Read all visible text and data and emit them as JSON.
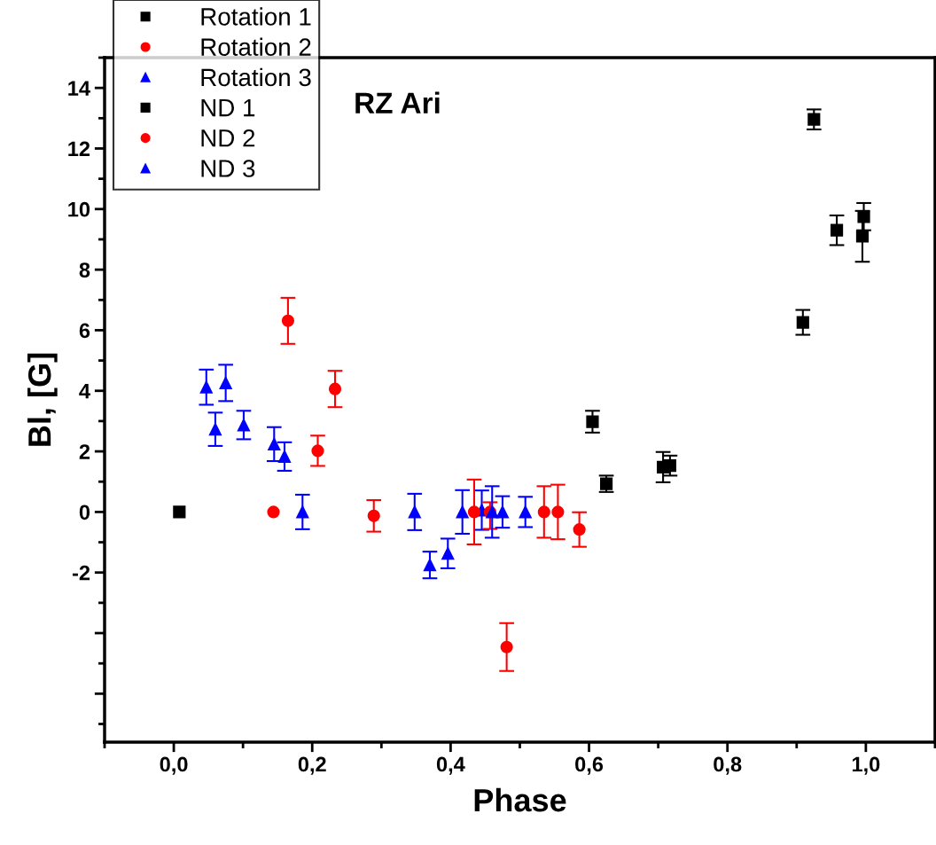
{
  "chart_data": {
    "type": "scatter",
    "title": "RZ Ari",
    "xlabel": "Phase",
    "ylabel": "Bl, [G]",
    "xlim": [
      -0.1,
      1.1
    ],
    "xticks": [
      {
        "value": 0,
        "label": "0,0"
      },
      {
        "value": 0.2,
        "label": "0,2"
      },
      {
        "value": 0.4,
        "label": "0,4"
      },
      {
        "value": 0.6,
        "label": "0,6"
      },
      {
        "value": 0.8,
        "label": "0,8"
      },
      {
        "value": 1.0,
        "label": "1,0"
      }
    ],
    "ylim": [
      -7.6,
      15
    ],
    "yticks": [
      {
        "value": -6,
        "label": null
      },
      {
        "value": -4,
        "label": null
      },
      -2,
      0,
      2,
      4,
      6,
      8,
      10,
      12,
      14
    ],
    "grid": false,
    "legend": "top left",
    "series": [
      {
        "name": "Rotation 1",
        "color": "#000000",
        "marker": "square",
        "x": [
          0.925,
          0.958,
          0.997,
          0.995,
          0.909,
          0.605,
          0.625,
          0.707,
          0.717
        ],
        "values": [
          12.96,
          9.3,
          9.75,
          9.1,
          6.26,
          2.98,
          0.93,
          1.48,
          1.53
        ],
        "errors": [
          0.33,
          0.49,
          0.45,
          0.84,
          0.41,
          0.36,
          0.27,
          0.5,
          0.33
        ]
      },
      {
        "name": "Rotation 2",
        "color": "#ff0000",
        "marker": "circle",
        "x": [
          0.165,
          0.233,
          0.208,
          0.289,
          0.481,
          0.586
        ],
        "values": [
          6.31,
          4.06,
          2.02,
          -0.13,
          -4.46,
          -0.58
        ],
        "errors": [
          0.76,
          0.6,
          0.5,
          0.52,
          0.79,
          0.57
        ]
      },
      {
        "name": "Rotation 3",
        "color": "#0000ff",
        "marker": "triangle",
        "x": [
          0.047,
          0.075,
          0.06,
          0.101,
          0.145,
          0.16,
          0.186,
          0.37,
          0.396,
          0.445
        ],
        "values": [
          4.12,
          4.26,
          2.73,
          2.87,
          2.24,
          1.83,
          0.0,
          -1.75,
          -1.37,
          0.06
        ],
        "errors": [
          0.58,
          0.6,
          0.55,
          0.47,
          0.56,
          0.47,
          0.57,
          0.44,
          0.49,
          0.65
        ]
      },
      {
        "name": "ND 1",
        "color": "#000000",
        "marker": "square",
        "x": [
          0.008
        ],
        "values": [
          0
        ],
        "errors": [
          null
        ]
      },
      {
        "name": "ND 2",
        "color": "#ff0000",
        "marker": "circle",
        "x": [
          0.144,
          0.434,
          0.457,
          0.535,
          0.555
        ],
        "values": [
          0,
          0,
          0,
          0,
          0
        ],
        "errors": [
          null,
          1.07,
          [
            -0.56,
            0.32
          ],
          0.85,
          0.9
        ]
      },
      {
        "name": "ND 3",
        "color": "#0000ff",
        "marker": "triangle",
        "x": [
          0.348,
          0.417,
          0.46,
          0.475,
          0.508
        ],
        "values": [
          0,
          0,
          0,
          0,
          0
        ],
        "errors": [
          0.6,
          0.72,
          0.85,
          0.52,
          0.5
        ]
      }
    ]
  }
}
